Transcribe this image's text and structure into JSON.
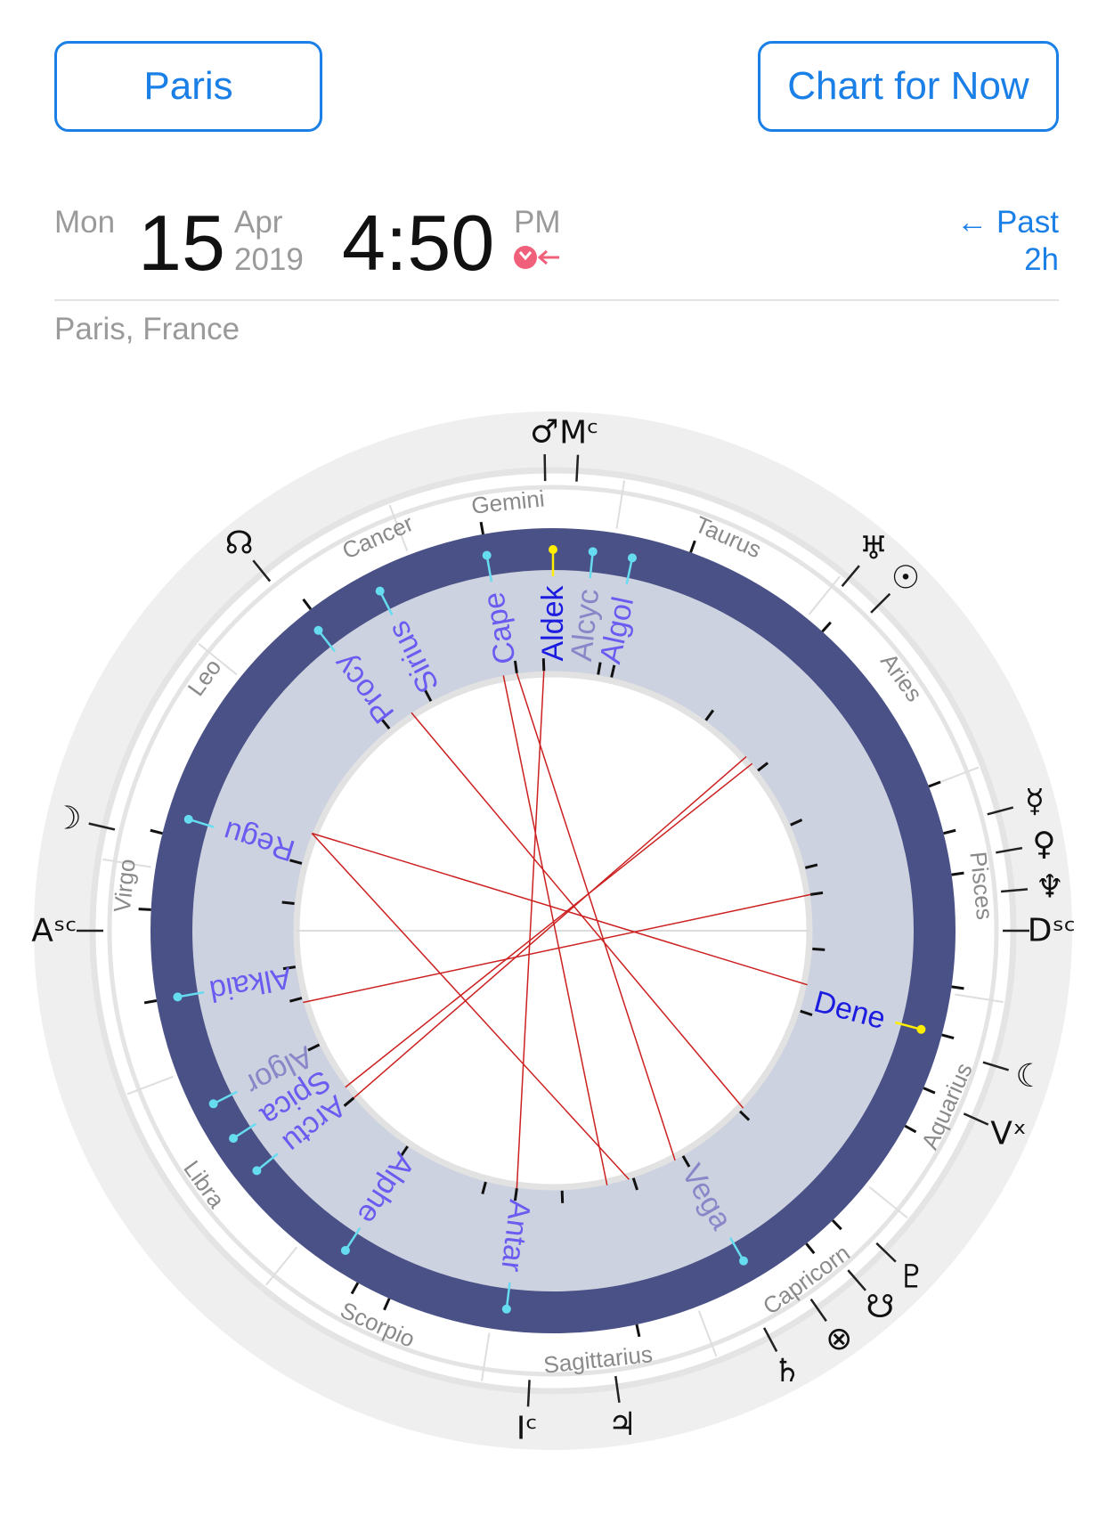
{
  "buttons": {
    "location": "Paris",
    "now": "Chart for Now"
  },
  "date": {
    "weekday": "Mon",
    "day": "15",
    "month": "Apr",
    "year": "2019",
    "time": "4:50",
    "ampm": "PM"
  },
  "time_nav": {
    "past_label": "← Past",
    "past_amount": "2h"
  },
  "place": "Paris, France",
  "colors": {
    "accent": "#1a7fe6",
    "navy_band": "#4a5186",
    "star_band": "#cdd2e0",
    "aspect_line": "#cc2020",
    "star_label": "#6a5cf0"
  },
  "wheel": {
    "signs": [
      {
        "name": "Gemini",
        "angle": 96
      },
      {
        "name": "Taurus",
        "angle": 66
      },
      {
        "name": "Aries",
        "angle": 36
      },
      {
        "name": "Pisces",
        "angle": 6
      },
      {
        "name": "Aquarius",
        "angle": -24
      },
      {
        "name": "Capricorn",
        "angle": -54
      },
      {
        "name": "Sagittarius",
        "angle": -84
      },
      {
        "name": "Scorpio",
        "angle": -114
      },
      {
        "name": "Libra",
        "angle": -144
      },
      {
        "name": "Virgo",
        "angle": 174
      },
      {
        "name": "Leo",
        "angle": 144
      },
      {
        "name": "Cancer",
        "angle": 114
      }
    ],
    "glyphs": [
      {
        "name": "mars",
        "symbol": "♂",
        "angle": 91
      },
      {
        "name": "midheaven",
        "symbol": "Mᶜ",
        "angle": 87
      },
      {
        "name": "north-node",
        "symbol": "☊",
        "angle": 129
      },
      {
        "name": "uranus",
        "symbol": "♅",
        "angle": 50
      },
      {
        "name": "sun",
        "symbol": "☉",
        "angle": 45
      },
      {
        "name": "mercury",
        "symbol": "☿",
        "angle": 15
      },
      {
        "name": "venus",
        "symbol": "♀",
        "angle": 10
      },
      {
        "name": "neptune",
        "symbol": "♆",
        "angle": 5
      },
      {
        "name": "descendant",
        "symbol": "Dˢᶜ",
        "angle": 0
      },
      {
        "name": "moon-right",
        "symbol": "☾",
        "angle": -17
      },
      {
        "name": "vertex",
        "symbol": "Vˣ",
        "angle": -24
      },
      {
        "name": "moon-left",
        "symbol": "☽",
        "angle": 167
      },
      {
        "name": "ascendant",
        "symbol": "Aˢᶜ",
        "angle": 180
      },
      {
        "name": "pluto",
        "symbol": "♇",
        "angle": -44
      },
      {
        "name": "south-node",
        "symbol": "☋",
        "angle": -49
      },
      {
        "name": "part-of-fortune",
        "symbol": "⊗",
        "angle": -55
      },
      {
        "name": "saturn",
        "symbol": "♄",
        "angle": -62
      },
      {
        "name": "imum-coeli",
        "symbol": "Iᶜ",
        "angle": -93
      },
      {
        "name": "jupiter",
        "symbol": "♃",
        "angle": -82
      }
    ],
    "stars": [
      {
        "name": "Cape",
        "angle": 100,
        "bright": false
      },
      {
        "name": "Aldek",
        "angle": 90,
        "bright": true
      },
      {
        "name": "Alcyc",
        "angle": 84,
        "bright": false,
        "faint": true
      },
      {
        "name": "Algol",
        "angle": 78,
        "bright": false
      },
      {
        "name": "Sirius",
        "angle": 117,
        "bright": false
      },
      {
        "name": "Procy",
        "angle": 128,
        "bright": false
      },
      {
        "name": "Regu",
        "angle": 163,
        "bright": false
      },
      {
        "name": "Alkaid",
        "angle": 190,
        "bright": false
      },
      {
        "name": "Algor",
        "angle": 207,
        "bright": false,
        "faint": true
      },
      {
        "name": "Spica",
        "angle": 213,
        "bright": false
      },
      {
        "name": "Arctu",
        "angle": 219,
        "bright": false
      },
      {
        "name": "Alphe",
        "angle": 237,
        "bright": false
      },
      {
        "name": "Antar",
        "angle": 263,
        "bright": false
      },
      {
        "name": "Vega",
        "angle": 300,
        "bright": false,
        "faint": true
      },
      {
        "name": "Dene",
        "angle": 345,
        "bright": true
      }
    ]
  }
}
